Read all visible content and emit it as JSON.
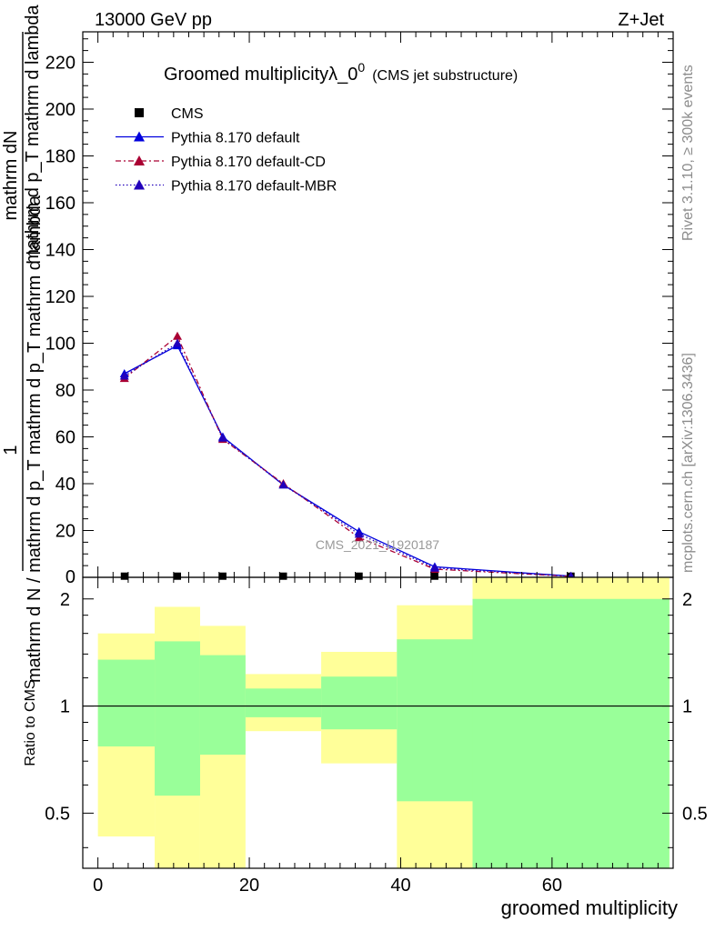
{
  "header": {
    "energy_label": "13000 GeV pp",
    "process_label": "Z+Jet",
    "title_main": "Groomed multiplicityλ_0",
    "title_sup": "0",
    "title_sub": "(CMS jet substructure)",
    "watermark": "CMS_2021_I1920187",
    "rivet_label": "Rivet 3.1.10, ≥ 300k events",
    "mcplots_label": "mcplots.cern.ch [arXiv:1306.3436]"
  },
  "chart_data": [
    {
      "type": "line",
      "ylabel_numerator": "1",
      "ylabel_numerator_mid": "mathrm dN",
      "ylabel_denominator": "mathrm d N / mathrm d p_T mathrm d p_T mathrm d lambda",
      "ylabel_denominator_display": "mathrm d N / mathrm d p_T mathrm d p_T mathrm d lambda",
      "ylabel_top_line": "mathrm d p_T mathrm d lambda",
      "xlim": [
        -2,
        76
      ],
      "ylim": [
        0,
        233
      ],
      "yticks": [
        20,
        40,
        60,
        80,
        100,
        120,
        140,
        160,
        180,
        200,
        220
      ],
      "x": [
        3.5,
        10.5,
        16.5,
        24.5,
        34.5,
        44.5,
        62.5
      ],
      "legend_position": "top-left",
      "series": [
        {
          "name": "CMS",
          "color": "#000000",
          "marker": "square",
          "line": "none",
          "values": [
            0.5,
            0.5,
            0.5,
            0.5,
            0.5,
            0.5,
            0.5
          ]
        },
        {
          "name": "Pythia 8.170 default",
          "color": "#0000dd",
          "marker": "triangle",
          "line": "solid",
          "values": [
            87,
            99,
            60,
            39.5,
            19.5,
            4.5,
            0.5
          ]
        },
        {
          "name": "Pythia 8.170 default-CD",
          "color": "#aa0033",
          "marker": "triangle",
          "line": "dashdot",
          "values": [
            85,
            103,
            59,
            40,
            17,
            3.5,
            0.4
          ]
        },
        {
          "name": "Pythia 8.170 default-MBR",
          "color": "#2200bb",
          "marker": "triangle",
          "line": "dotted",
          "values": [
            86,
            100,
            59.5,
            39.5,
            18.5,
            4,
            0.45
          ]
        }
      ]
    },
    {
      "type": "area",
      "ylabel": "Ratio to CMS",
      "xlabel": "groomed multiplicity",
      "xlim": [
        -2,
        76
      ],
      "ylim": [
        0.35,
        2.3
      ],
      "yscale": "log",
      "xticks": [
        0,
        20,
        40,
        60
      ],
      "yticks": [
        0.5,
        1,
        2
      ],
      "reference_line": 1,
      "bins": [
        {
          "lo": 0,
          "hi": 7.5,
          "yellow": [
            0.43,
            1.6
          ],
          "green": [
            0.77,
            1.35
          ]
        },
        {
          "lo": 7.5,
          "hi": 13.5,
          "yellow": [
            0.35,
            1.9
          ],
          "green": [
            0.56,
            1.52
          ]
        },
        {
          "lo": 13.5,
          "hi": 19.5,
          "yellow": [
            0.35,
            1.68
          ],
          "green": [
            0.73,
            1.39
          ]
        },
        {
          "lo": 19.5,
          "hi": 29.5,
          "yellow": [
            0.85,
            1.23
          ],
          "green": [
            0.93,
            1.12
          ]
        },
        {
          "lo": 29.5,
          "hi": 39.5,
          "yellow": [
            0.69,
            1.42
          ],
          "green": [
            0.86,
            1.21
          ]
        },
        {
          "lo": 39.5,
          "hi": 49.5,
          "yellow": [
            0.35,
            1.92
          ],
          "green": [
            0.54,
            1.54
          ]
        },
        {
          "lo": 49.5,
          "hi": 75.5,
          "yellow": [
            0.35,
            2.3
          ],
          "green": [
            0.35,
            2.0
          ]
        }
      ]
    }
  ]
}
